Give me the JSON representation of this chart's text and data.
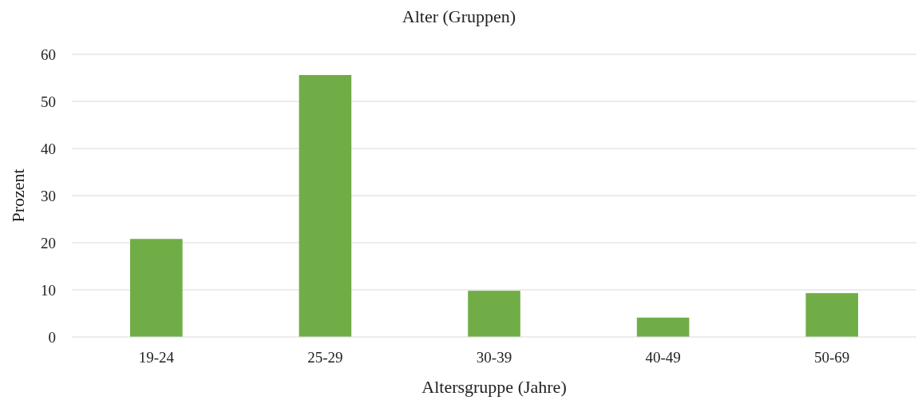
{
  "chart_data": {
    "type": "bar",
    "title": "Alter (Gruppen)",
    "xlabel": "Altersgruppe (Jahre)",
    "ylabel": "Prozent",
    "categories": [
      "19-24",
      "25-29",
      "30-39",
      "40-49",
      "50-69"
    ],
    "series": [
      {
        "color": "#70ad47",
        "values": [
          20.8,
          55.6,
          9.8,
          4.1,
          9.3
        ]
      }
    ],
    "ylim": [
      0,
      60
    ],
    "yticks": [
      0,
      10,
      20,
      30,
      40,
      50,
      60
    ],
    "grid": "y"
  }
}
